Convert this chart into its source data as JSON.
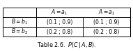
{
  "col_headers_1": "$A = a_1$",
  "col_headers_2": "$A = a_2$",
  "row_labels": [
    "$B = b_1$",
    "$B = b_2$"
  ],
  "cell_data": [
    [
      "(0.1 ; 0.9)",
      "(0.1 ; 0.9)"
    ],
    [
      "(0.2 ; 0.8)",
      "(0.2 ; 0.8)"
    ]
  ],
  "caption": "Table 2.6.  $P(C\\,|\\,A, B).$",
  "bg_color": "#ffffff",
  "border_color": "#000000",
  "text_color": "#000000",
  "header_fontsize": 5.5,
  "cell_fontsize": 5.5,
  "caption_fontsize": 5.8
}
